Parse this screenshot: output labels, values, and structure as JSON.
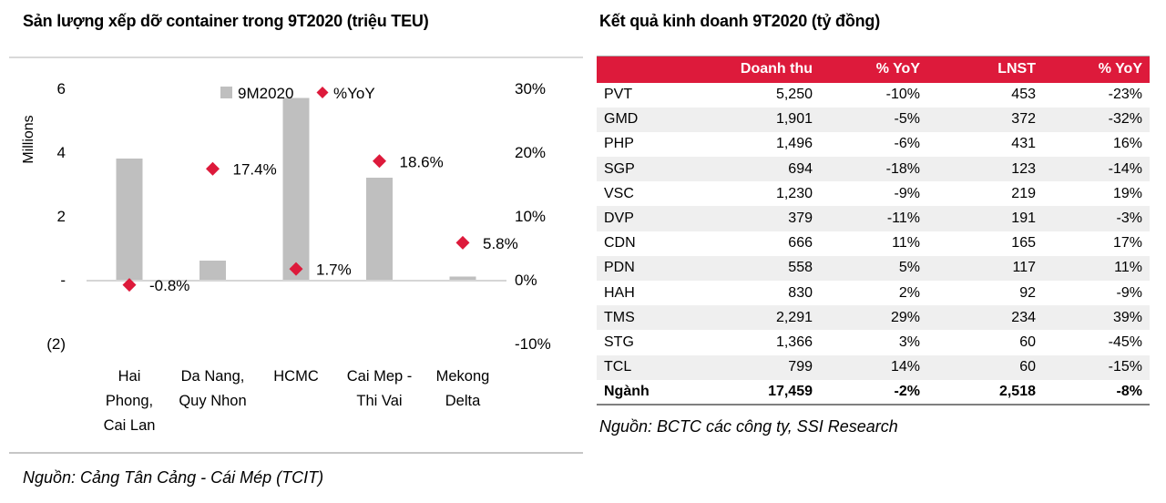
{
  "left_panel": {
    "title": "Sản lượng xếp dỡ container trong 9T2020 (triệu TEU)",
    "source": "Nguồn: Cảng Tân Cảng - Cái Mép (TCIT)"
  },
  "right_panel": {
    "title": "Kết quả kinh doanh 9T2020 (tỷ đồng)",
    "source": "Nguồn: BCTC các công ty, SSI Research"
  },
  "chart_data": [
    {
      "type": "bar",
      "title": "Sản lượng xếp dỡ container trong 9T2020 (triệu TEU)",
      "categories": [
        "Hai Phong, Cai Lan",
        "Da Nang, Quy Nhon",
        "HCMC",
        "Cai Mep - Thi Vai",
        "Mekong Delta"
      ],
      "categories_multiline": [
        [
          "Hai",
          "Phong,",
          "Cai Lan"
        ],
        [
          "Da Nang,",
          "Quy Nhon"
        ],
        [
          "HCMC"
        ],
        [
          "Cai Mep -",
          "Thi Vai"
        ],
        [
          "Mekong",
          "Delta"
        ]
      ],
      "series": [
        {
          "name": "9M2020",
          "type": "bar",
          "axis": "left",
          "values": [
            3.8,
            0.6,
            5.7,
            3.2,
            0.1
          ]
        },
        {
          "name": "%YoY",
          "type": "scatter",
          "marker": "diamond",
          "axis": "right",
          "values": [
            -0.8,
            17.4,
            1.7,
            18.6,
            5.8
          ],
          "point_labels": [
            "-0.8%",
            "17.4%",
            "1.7%",
            "18.6%",
            "5.8%"
          ]
        }
      ],
      "left_axis": {
        "title": "Millions",
        "range": [
          -2,
          6
        ],
        "ticks": [
          {
            "label": "6",
            "value": 6
          },
          {
            "label": "4",
            "value": 4
          },
          {
            "label": "2",
            "value": 2
          },
          {
            "label": "-",
            "value": 0
          },
          {
            "label": "(2)",
            "value": -2
          }
        ]
      },
      "right_axis": {
        "title": "",
        "range": [
          -10,
          30
        ],
        "ticks": [
          {
            "label": "30%",
            "value": 30
          },
          {
            "label": "20%",
            "value": 20
          },
          {
            "label": "10%",
            "value": 10
          },
          {
            "label": "0%",
            "value": 0
          },
          {
            "label": "-10%",
            "value": -10
          }
        ]
      },
      "legend": {
        "position": "top",
        "entries": [
          "9M2020",
          "%YoY"
        ]
      },
      "grid": false,
      "colors": {
        "bar": "#bfbfbf",
        "marker": "#dd1a3b",
        "axis_line": "#d6d6d6"
      }
    },
    {
      "type": "table",
      "title": "Kết quả kinh doanh 9T2020 (tỷ đồng)",
      "columns": [
        "",
        "Doanh thu",
        "% YoY",
        "LNST",
        "% YoY"
      ],
      "rows": [
        [
          "PVT",
          "5,250",
          "-10%",
          "453",
          "-23%"
        ],
        [
          "GMD",
          "1,901",
          "-5%",
          "372",
          "-32%"
        ],
        [
          "PHP",
          "1,496",
          "-6%",
          "431",
          "16%"
        ],
        [
          "SGP",
          "694",
          "-18%",
          "123",
          "-14%"
        ],
        [
          "VSC",
          "1,230",
          "-9%",
          "219",
          "19%"
        ],
        [
          "DVP",
          "379",
          "-11%",
          "191",
          "-3%"
        ],
        [
          "CDN",
          "666",
          "11%",
          "165",
          "17%"
        ],
        [
          "PDN",
          "558",
          "5%",
          "117",
          "11%"
        ],
        [
          "HAH",
          "830",
          "2%",
          "92",
          "-9%"
        ],
        [
          "TMS",
          "2,291",
          "29%",
          "234",
          "39%"
        ],
        [
          "STG",
          "1,366",
          "3%",
          "60",
          "-45%"
        ],
        [
          "TCL",
          "799",
          "14%",
          "60",
          "-15%"
        ]
      ],
      "total_row": [
        "Ngành",
        "17,459",
        "-2%",
        "2,518",
        "-8%"
      ],
      "colors": {
        "header_bg": "#dd1a3b",
        "header_fg": "#ffffff",
        "stripe_bg": "#efefef",
        "bottom_border": "#7f7f7f"
      }
    }
  ]
}
